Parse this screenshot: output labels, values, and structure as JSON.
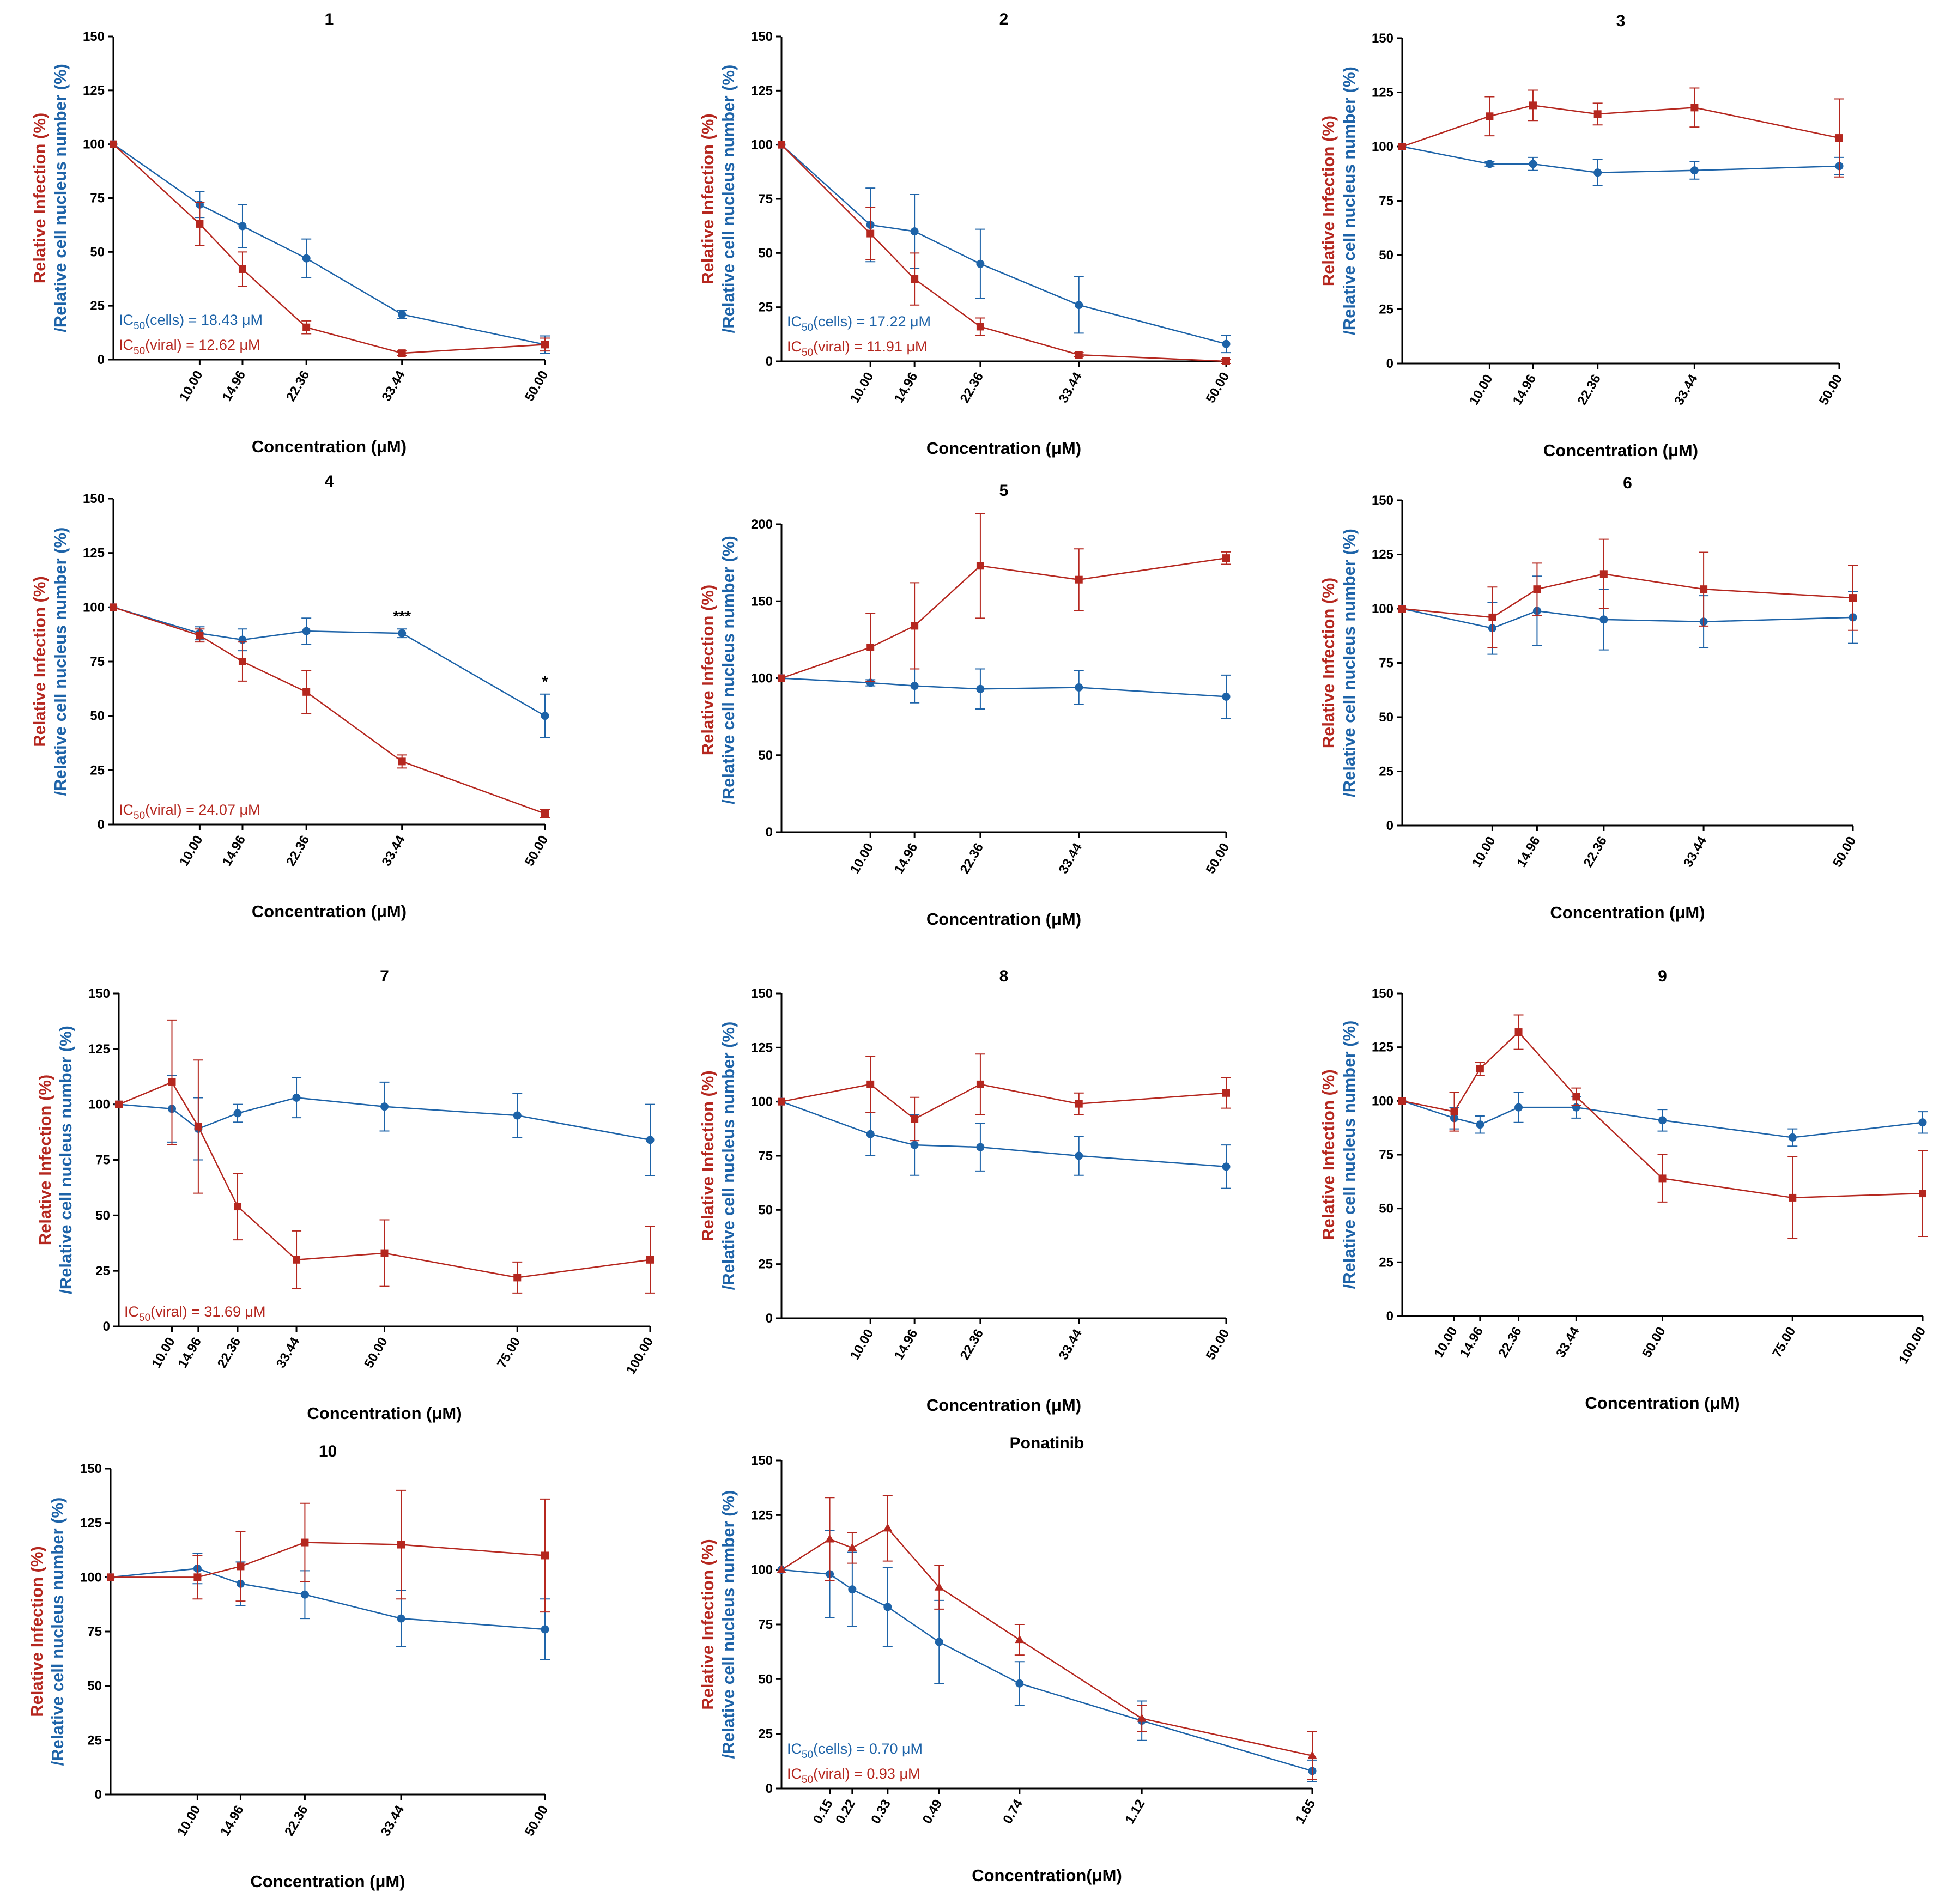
{
  "colors": {
    "viral": "#b5271f",
    "cells": "#1d63a8",
    "axis": "#000000"
  },
  "chart_data": [
    {
      "type": "line",
      "title": "1",
      "xlabel": "Concentration (μM)",
      "ylabel_viral": "Relative Infection (%)",
      "ylabel_cells": "/Relative cell nucleus number (%)",
      "ylim": [
        0,
        150
      ],
      "yticks": [
        "0",
        "25",
        "50",
        "75",
        "100",
        "125",
        "150"
      ],
      "xticks": [
        "10.00",
        "14.96",
        "22.36",
        "33.44",
        "50.00"
      ],
      "x": [
        0,
        10.0,
        14.96,
        22.36,
        33.44,
        50.0
      ],
      "series": [
        {
          "key": "cells",
          "marker": "circle",
          "values": [
            100,
            72,
            62,
            47,
            21,
            7
          ],
          "err": [
            0,
            6,
            10,
            9,
            2,
            4
          ]
        },
        {
          "key": "viral",
          "marker": "square",
          "values": [
            100,
            63,
            42,
            15,
            3,
            7
          ],
          "err": [
            0,
            10,
            8,
            3,
            1,
            3
          ]
        }
      ],
      "annotations": [
        {
          "key": "cells",
          "prefix": "IC",
          "sub": "50",
          "text": "(cells) = 18.43 μM"
        },
        {
          "key": "viral",
          "prefix": "IC",
          "sub": "50",
          "text": "(viral)  = 12.62 μM"
        }
      ]
    },
    {
      "type": "line",
      "title": "2",
      "xlabel": "Concentration (μM)",
      "ylabel_viral": "Relative Infection (%)",
      "ylabel_cells": "/Relative cell nucleus number (%)",
      "ylim": [
        0,
        150
      ],
      "yticks": [
        "0",
        "25",
        "50",
        "75",
        "100",
        "125",
        "150"
      ],
      "xticks": [
        "10.00",
        "14.96",
        "22.36",
        "33.44",
        "50.00"
      ],
      "x": [
        0,
        10.0,
        14.96,
        22.36,
        33.44,
        50.0
      ],
      "series": [
        {
          "key": "cells",
          "marker": "circle",
          "values": [
            100,
            63,
            60,
            45,
            26,
            8
          ],
          "err": [
            0,
            17,
            17,
            16,
            13,
            4
          ]
        },
        {
          "key": "viral",
          "marker": "square",
          "values": [
            100,
            59,
            38,
            16,
            3,
            0
          ],
          "err": [
            0,
            12,
            12,
            4,
            1,
            1
          ]
        }
      ],
      "annotations": [
        {
          "key": "cells",
          "prefix": "IC",
          "sub": "50",
          "text": "(cells) = 17.22 μM"
        },
        {
          "key": "viral",
          "prefix": "IC",
          "sub": "50",
          "text": "(viral) = 11.91 μM"
        }
      ]
    },
    {
      "type": "line",
      "title": "3",
      "xlabel": "Concentration (μM)",
      "ylabel_viral": "Relative Infection (%)",
      "ylabel_cells": "/Relative cell nucleus number (%)",
      "ylim": [
        0,
        150
      ],
      "yticks": [
        "0",
        "25",
        "50",
        "75",
        "100",
        "125",
        "150"
      ],
      "xticks": [
        "10.00",
        "14.96",
        "22.36",
        "33.44",
        "50.00"
      ],
      "x": [
        0,
        10.0,
        14.96,
        22.36,
        33.44,
        50.0
      ],
      "series": [
        {
          "key": "cells",
          "marker": "circle",
          "values": [
            100,
            92,
            92,
            88,
            89,
            91
          ],
          "err": [
            0,
            1,
            3,
            6,
            4,
            4
          ]
        },
        {
          "key": "viral",
          "marker": "square",
          "values": [
            100,
            114,
            119,
            115,
            118,
            104
          ],
          "err": [
            0,
            9,
            7,
            5,
            9,
            18
          ]
        }
      ],
      "annotations": []
    },
    {
      "type": "line",
      "title": "4",
      "xlabel": "Concentration (μM)",
      "ylabel_viral": "Relative Infection (%)",
      "ylabel_cells": "/Relative cell nucleus number (%)",
      "ylim": [
        0,
        150
      ],
      "yticks": [
        "0",
        "25",
        "50",
        "75",
        "100",
        "125",
        "150"
      ],
      "xticks": [
        "10.00",
        "14.96",
        "22.36",
        "33.44",
        "50.00"
      ],
      "x": [
        0,
        10.0,
        14.96,
        22.36,
        33.44,
        50.0
      ],
      "series": [
        {
          "key": "cells",
          "marker": "circle",
          "values": [
            100,
            88,
            85,
            89,
            88,
            50
          ],
          "err": [
            0,
            3,
            5,
            6,
            2,
            10
          ]
        },
        {
          "key": "viral",
          "marker": "square",
          "values": [
            100,
            87,
            75,
            61,
            29,
            5
          ],
          "err": [
            0,
            3,
            9,
            10,
            3,
            2
          ]
        }
      ],
      "stars": [
        {
          "xi": 4,
          "text": "***"
        },
        {
          "xi": 5,
          "text": "*"
        }
      ],
      "annotations": [
        {
          "key": "viral",
          "prefix": "IC",
          "sub": "50",
          "text": "(viral) = 24.07 μM"
        }
      ]
    },
    {
      "type": "line",
      "title": "5",
      "xlabel": "Concentration (μM)",
      "ylabel_viral": "Relative Infection (%)",
      "ylabel_cells": "/Relative cell nucleus number (%)",
      "ylim": [
        0,
        210
      ],
      "yticks": [
        "0",
        "50",
        "100",
        "150",
        "200"
      ],
      "ytickvals": [
        0,
        50,
        100,
        150,
        200
      ],
      "xticks": [
        "10.00",
        "14.96",
        "22.36",
        "33.44",
        "50.00"
      ],
      "x": [
        0,
        10.0,
        14.96,
        22.36,
        33.44,
        50.0
      ],
      "series": [
        {
          "key": "cells",
          "marker": "circle",
          "values": [
            100,
            97,
            95,
            93,
            94,
            88
          ],
          "err": [
            0,
            2,
            11,
            13,
            11,
            14
          ]
        },
        {
          "key": "viral",
          "marker": "square",
          "values": [
            100,
            120,
            134,
            173,
            164,
            178
          ],
          "err": [
            0,
            22,
            28,
            34,
            20,
            4
          ]
        }
      ],
      "annotations": []
    },
    {
      "type": "line",
      "title": "6",
      "xlabel": "Concentration (μM)",
      "ylabel_viral": "Relative Infection (%)",
      "ylabel_cells": "/Relative cell nucleus number (%)",
      "ylim": [
        0,
        150
      ],
      "yticks": [
        "0",
        "25",
        "50",
        "75",
        "100",
        "125",
        "150"
      ],
      "xticks": [
        "10.00",
        "14.96",
        "22.36",
        "33.44",
        "50.00"
      ],
      "x": [
        0,
        10.0,
        14.96,
        22.36,
        33.44,
        50.0
      ],
      "series": [
        {
          "key": "cells",
          "marker": "circle",
          "values": [
            100,
            91,
            99,
            95,
            94,
            96
          ],
          "err": [
            0,
            12,
            16,
            14,
            12,
            12
          ]
        },
        {
          "key": "viral",
          "marker": "square",
          "values": [
            100,
            96,
            109,
            116,
            109,
            105
          ],
          "err": [
            0,
            14,
            12,
            16,
            17,
            15
          ]
        }
      ],
      "annotations": []
    },
    {
      "type": "line",
      "title": "7",
      "xlabel": "Concentration (μM)",
      "ylabel_viral": "Relative Infection (%)",
      "ylabel_cells": "/Relative cell nucleus number (%)",
      "ylim": [
        0,
        150
      ],
      "yticks": [
        "0",
        "25",
        "50",
        "75",
        "100",
        "125",
        "150"
      ],
      "xticks": [
        "10.00",
        "14.96",
        "22.36",
        "33.44",
        "50.00",
        "75.00",
        "100.00"
      ],
      "x": [
        0,
        10.0,
        14.96,
        22.36,
        33.44,
        50.0,
        75.0,
        100.0
      ],
      "series": [
        {
          "key": "cells",
          "marker": "circle",
          "values": [
            100,
            98,
            89,
            96,
            103,
            99,
            95,
            84
          ],
          "err": [
            0,
            15,
            14,
            4,
            9,
            11,
            10,
            16
          ]
        },
        {
          "key": "viral",
          "marker": "square",
          "values": [
            100,
            110,
            90,
            54,
            30,
            33,
            22,
            30
          ],
          "err": [
            0,
            28,
            30,
            15,
            13,
            15,
            7,
            15
          ]
        }
      ],
      "annotations": [
        {
          "key": "viral",
          "prefix": "IC",
          "sub": "50",
          "text": "(viral) = 31.69 μM"
        }
      ]
    },
    {
      "type": "line",
      "title": "8",
      "xlabel": "Concentration (μM)",
      "ylabel_viral": "Relative Infection (%)",
      "ylabel_cells": "/Relative cell nucleus number (%)",
      "ylim": [
        0,
        150
      ],
      "yticks": [
        "0",
        "25",
        "50",
        "75",
        "100",
        "125",
        "150"
      ],
      "xticks": [
        "10.00",
        "14.96",
        "22.36",
        "33.44",
        "50.00"
      ],
      "x": [
        0,
        10.0,
        14.96,
        22.36,
        33.44,
        50.0
      ],
      "series": [
        {
          "key": "cells",
          "marker": "circle",
          "values": [
            100,
            85,
            80,
            79,
            75,
            70
          ],
          "err": [
            0,
            10,
            14,
            11,
            9,
            10
          ]
        },
        {
          "key": "viral",
          "marker": "square",
          "values": [
            100,
            108,
            92,
            108,
            99,
            104
          ],
          "err": [
            0,
            13,
            10,
            14,
            5,
            7
          ]
        }
      ],
      "annotations": []
    },
    {
      "type": "line",
      "title": "9",
      "xlabel": "Concentration (μM)",
      "ylabel_viral": "Relative Infection (%)",
      "ylabel_cells": "/Relative cell nucleus number (%)",
      "ylim": [
        0,
        150
      ],
      "yticks": [
        "0",
        "25",
        "50",
        "75",
        "100",
        "125",
        "150"
      ],
      "xticks": [
        "10.00",
        "14.96",
        "22.36",
        "33.44",
        "50.00",
        "75.00",
        "100.00"
      ],
      "x": [
        0,
        10.0,
        14.96,
        22.36,
        33.44,
        50.0,
        75.0,
        100.0
      ],
      "series": [
        {
          "key": "cells",
          "marker": "circle",
          "values": [
            100,
            92,
            89,
            97,
            97,
            91,
            83,
            90
          ],
          "err": [
            0,
            5,
            4,
            7,
            5,
            5,
            4,
            5
          ]
        },
        {
          "key": "viral",
          "marker": "square",
          "values": [
            100,
            95,
            115,
            132,
            102,
            64,
            55,
            57
          ],
          "err": [
            0,
            9,
            3,
            8,
            4,
            11,
            19,
            20
          ]
        }
      ],
      "annotations": []
    },
    {
      "type": "line",
      "title": "10",
      "xlabel": "Concentration (μM)",
      "ylabel_viral": "Relative Infection (%)",
      "ylabel_cells": "/Relative cell nucleus number (%)",
      "ylim": [
        0,
        150
      ],
      "yticks": [
        "0",
        "25",
        "50",
        "75",
        "100",
        "125",
        "150"
      ],
      "xticks": [
        "10.00",
        "14.96",
        "22.36",
        "33.44",
        "50.00"
      ],
      "x": [
        0,
        10.0,
        14.96,
        22.36,
        33.44,
        50.0
      ],
      "series": [
        {
          "key": "cells",
          "marker": "circle",
          "values": [
            100,
            104,
            97,
            92,
            81,
            76
          ],
          "err": [
            0,
            7,
            10,
            11,
            13,
            14
          ]
        },
        {
          "key": "viral",
          "marker": "square",
          "values": [
            100,
            100,
            105,
            116,
            115,
            110
          ],
          "err": [
            0,
            10,
            16,
            18,
            25,
            26
          ]
        }
      ],
      "annotations": []
    },
    {
      "type": "line",
      "title": "Ponatinib",
      "xlabel": "Concentration(μM)",
      "ylabel_viral": "Relative Infection (%)",
      "ylabel_cells": "/Relative cell nucleus number (%)",
      "ylim": [
        0,
        150
      ],
      "yticks": [
        "0",
        "25",
        "50",
        "75",
        "100",
        "125",
        "150"
      ],
      "xticks": [
        "0.15",
        "0.22",
        "0.33",
        "0.49",
        "0.74",
        "1.12",
        "1.65"
      ],
      "x": [
        0,
        0.15,
        0.22,
        0.33,
        0.49,
        0.74,
        1.12,
        1.65
      ],
      "series": [
        {
          "key": "cells",
          "marker": "circle",
          "values": [
            100,
            98,
            91,
            83,
            67,
            48,
            31,
            8
          ],
          "err": [
            0,
            20,
            17,
            18,
            19,
            10,
            9,
            5
          ]
        },
        {
          "key": "viral",
          "marker": "triangle",
          "values": [
            100,
            114,
            110,
            119,
            92,
            68,
            32,
            15
          ],
          "err": [
            0,
            19,
            7,
            15,
            10,
            7,
            6,
            11
          ]
        }
      ],
      "annotations": [
        {
          "key": "cells",
          "prefix": "IC",
          "sub": "50",
          "text": "(cells) = 0.70 μM"
        },
        {
          "key": "viral",
          "prefix": "IC",
          "sub": "50",
          "text": "(viral) = 0.93 μM"
        }
      ]
    }
  ]
}
